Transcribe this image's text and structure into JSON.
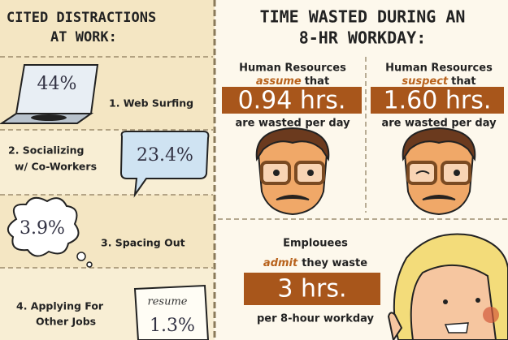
{
  "left": {
    "title": [
      "CITED DISTRACTIONS",
      "AT WORK:"
    ],
    "items": [
      {
        "value": "44%",
        "label": [
          "1. Web Surfing"
        ]
      },
      {
        "value": "23.4%",
        "label": [
          "2. Socializing",
          "w/ Co-Workers"
        ]
      },
      {
        "value": "3.9%",
        "label": [
          "3. Spacing Out"
        ]
      },
      {
        "value": "1.3%",
        "label": [
          "4. Applying For",
          "Other Jobs"
        ],
        "note": "resume"
      }
    ]
  },
  "right": {
    "title": [
      "TIME WASTED DURING AN",
      "8-HR WORKDAY:"
    ],
    "panels": [
      {
        "line1": "Human Resources",
        "verb": "assume",
        "verb_rest": "that",
        "value": "0.94 hrs.",
        "line3": "are wasted per day"
      },
      {
        "line1": "Human Resources",
        "verb": "suspect",
        "verb_rest": "that",
        "value": "1.60 hrs.",
        "line3": "are wasted per day"
      }
    ],
    "bottom": {
      "line1": "Emplouees",
      "verb": "admit",
      "verb_rest": "they waste",
      "value": "3 hrs.",
      "line3": "per 8-hour workday"
    }
  }
}
